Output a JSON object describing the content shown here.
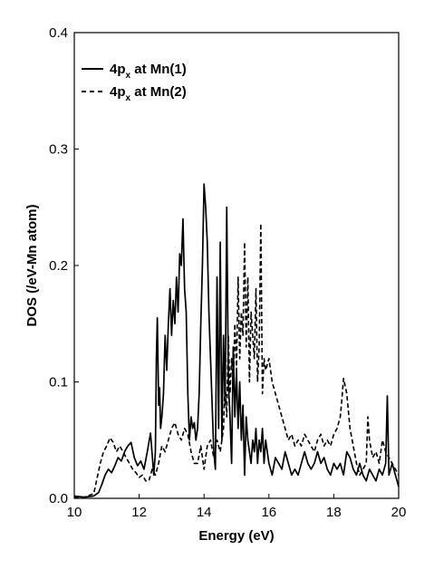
{
  "chart_data": {
    "type": "line",
    "xlabel": "Energy (eV)",
    "ylabel": "DOS (/eV-Mn atom)",
    "xlim": [
      10,
      20
    ],
    "ylim": [
      0.0,
      0.4
    ],
    "xticks": [
      "10",
      "12",
      "14",
      "16",
      "18",
      "20"
    ],
    "yticks": [
      "0.0",
      "0.1",
      "0.2",
      "0.3",
      "0.4"
    ],
    "grid": false,
    "legend_position": "top-left",
    "series": [
      {
        "name_main": "4p",
        "name_sub": "x",
        "name_tail": " at Mn(1)",
        "style": "solid",
        "color": "#000000",
        "x": [
          10.0,
          10.3,
          10.6,
          10.75,
          10.85,
          10.95,
          11.05,
          11.15,
          11.25,
          11.35,
          11.45,
          11.55,
          11.65,
          11.75,
          11.85,
          11.95,
          12.05,
          12.15,
          12.25,
          12.35,
          12.45,
          12.5,
          12.53,
          12.56,
          12.6,
          12.63,
          12.66,
          12.7,
          12.75,
          12.8,
          12.85,
          12.9,
          12.95,
          13.0,
          13.05,
          13.1,
          13.15,
          13.2,
          13.25,
          13.3,
          13.35,
          13.4,
          13.45,
          13.5,
          13.55,
          13.6,
          13.65,
          13.7,
          13.75,
          13.8,
          13.85,
          13.9,
          13.95,
          14.0,
          14.05,
          14.1,
          14.15,
          14.2,
          14.25,
          14.3,
          14.35,
          14.4,
          14.45,
          14.5,
          14.55,
          14.6,
          14.65,
          14.7,
          14.75,
          14.8,
          14.85,
          14.9,
          14.95,
          15.0,
          15.05,
          15.1,
          15.15,
          15.2,
          15.25,
          15.3,
          15.35,
          15.4,
          15.45,
          15.5,
          15.55,
          15.6,
          15.65,
          15.7,
          15.75,
          15.8,
          15.85,
          15.9,
          15.95,
          16.0,
          16.1,
          16.2,
          16.3,
          16.4,
          16.5,
          16.6,
          16.7,
          16.8,
          16.9,
          17.0,
          17.1,
          17.2,
          17.3,
          17.4,
          17.5,
          17.6,
          17.7,
          17.8,
          17.9,
          18.0,
          18.1,
          18.2,
          18.3,
          18.4,
          18.5,
          18.6,
          18.7,
          18.8,
          18.9,
          19.0,
          19.1,
          19.2,
          19.3,
          19.4,
          19.5,
          19.6,
          19.65,
          19.7,
          19.8,
          19.9,
          20.0
        ],
        "y": [
          0.002,
          0.001,
          0.002,
          0.005,
          0.012,
          0.02,
          0.025,
          0.022,
          0.028,
          0.035,
          0.032,
          0.04,
          0.045,
          0.048,
          0.035,
          0.028,
          0.032,
          0.025,
          0.04,
          0.056,
          0.02,
          0.04,
          0.12,
          0.155,
          0.08,
          0.095,
          0.06,
          0.07,
          0.09,
          0.14,
          0.11,
          0.15,
          0.18,
          0.14,
          0.17,
          0.15,
          0.19,
          0.16,
          0.21,
          0.2,
          0.24,
          0.18,
          0.16,
          0.09,
          0.05,
          0.07,
          0.06,
          0.065,
          0.05,
          0.06,
          0.09,
          0.15,
          0.2,
          0.27,
          0.25,
          0.22,
          0.16,
          0.12,
          0.08,
          0.04,
          0.025,
          0.19,
          0.06,
          0.22,
          0.05,
          0.14,
          0.08,
          0.25,
          0.1,
          0.07,
          0.03,
          0.13,
          0.07,
          0.11,
          0.06,
          0.1,
          0.05,
          0.08,
          0.02,
          0.07,
          0.05,
          0.04,
          0.03,
          0.05,
          0.04,
          0.06,
          0.03,
          0.05,
          0.04,
          0.06,
          0.03,
          0.05,
          0.04,
          0.03,
          0.02,
          0.035,
          0.03,
          0.025,
          0.04,
          0.03,
          0.02,
          0.025,
          0.02,
          0.03,
          0.04,
          0.03,
          0.025,
          0.03,
          0.04,
          0.03,
          0.035,
          0.025,
          0.02,
          0.03,
          0.025,
          0.03,
          0.02,
          0.04,
          0.035,
          0.025,
          0.02,
          0.03,
          0.02,
          0.015,
          0.025,
          0.02,
          0.015,
          0.025,
          0.02,
          0.03,
          0.088,
          0.02,
          0.03,
          0.02,
          0.01
        ]
      },
      {
        "name_main": "4p",
        "name_sub": "x",
        "name_tail": " at Mn(2)",
        "style": "dashed",
        "color": "#000000",
        "x": [
          10.0,
          10.3,
          10.6,
          10.8,
          10.9,
          11.0,
          11.1,
          11.2,
          11.3,
          11.4,
          11.5,
          11.6,
          11.7,
          11.8,
          11.9,
          12.0,
          12.1,
          12.2,
          12.3,
          12.4,
          12.5,
          12.6,
          12.7,
          12.8,
          12.9,
          13.0,
          13.1,
          13.2,
          13.3,
          13.4,
          13.5,
          13.6,
          13.7,
          13.8,
          13.9,
          14.0,
          14.1,
          14.2,
          14.3,
          14.4,
          14.5,
          14.6,
          14.65,
          14.7,
          14.75,
          14.8,
          14.85,
          14.9,
          14.95,
          15.0,
          15.05,
          15.1,
          15.15,
          15.2,
          15.25,
          15.3,
          15.35,
          15.4,
          15.45,
          15.5,
          15.55,
          15.6,
          15.65,
          15.7,
          15.75,
          15.8,
          15.85,
          15.9,
          16.0,
          16.1,
          16.2,
          16.3,
          16.4,
          16.5,
          16.6,
          16.7,
          16.8,
          16.9,
          17.0,
          17.1,
          17.2,
          17.3,
          17.4,
          17.5,
          17.6,
          17.7,
          17.8,
          17.9,
          18.0,
          18.1,
          18.2,
          18.25,
          18.3,
          18.4,
          18.5,
          18.6,
          18.7,
          18.8,
          18.9,
          19.0,
          19.05,
          19.1,
          19.2,
          19.3,
          19.4,
          19.5,
          19.6,
          19.7,
          19.8,
          19.9,
          20.0
        ],
        "y": [
          0.001,
          0.001,
          0.004,
          0.03,
          0.04,
          0.045,
          0.052,
          0.048,
          0.04,
          0.045,
          0.04,
          0.035,
          0.03,
          0.025,
          0.022,
          0.018,
          0.02,
          0.015,
          0.015,
          0.025,
          0.02,
          0.03,
          0.045,
          0.04,
          0.05,
          0.06,
          0.065,
          0.055,
          0.05,
          0.06,
          0.055,
          0.04,
          0.03,
          0.03,
          0.045,
          0.025,
          0.045,
          0.05,
          0.035,
          0.05,
          0.04,
          0.06,
          0.1,
          0.07,
          0.14,
          0.09,
          0.12,
          0.1,
          0.15,
          0.11,
          0.19,
          0.12,
          0.16,
          0.14,
          0.22,
          0.13,
          0.19,
          0.1,
          0.16,
          0.14,
          0.12,
          0.18,
          0.1,
          0.13,
          0.236,
          0.09,
          0.12,
          0.11,
          0.12,
          0.1,
          0.09,
          0.08,
          0.07,
          0.06,
          0.05,
          0.055,
          0.045,
          0.05,
          0.045,
          0.055,
          0.05,
          0.045,
          0.04,
          0.05,
          0.055,
          0.045,
          0.05,
          0.045,
          0.055,
          0.06,
          0.07,
          0.085,
          0.103,
          0.09,
          0.06,
          0.045,
          0.03,
          0.02,
          0.025,
          0.03,
          0.07,
          0.05,
          0.035,
          0.04,
          0.03,
          0.05,
          0.04,
          0.035,
          0.03,
          0.025,
          0.02
        ]
      }
    ]
  }
}
